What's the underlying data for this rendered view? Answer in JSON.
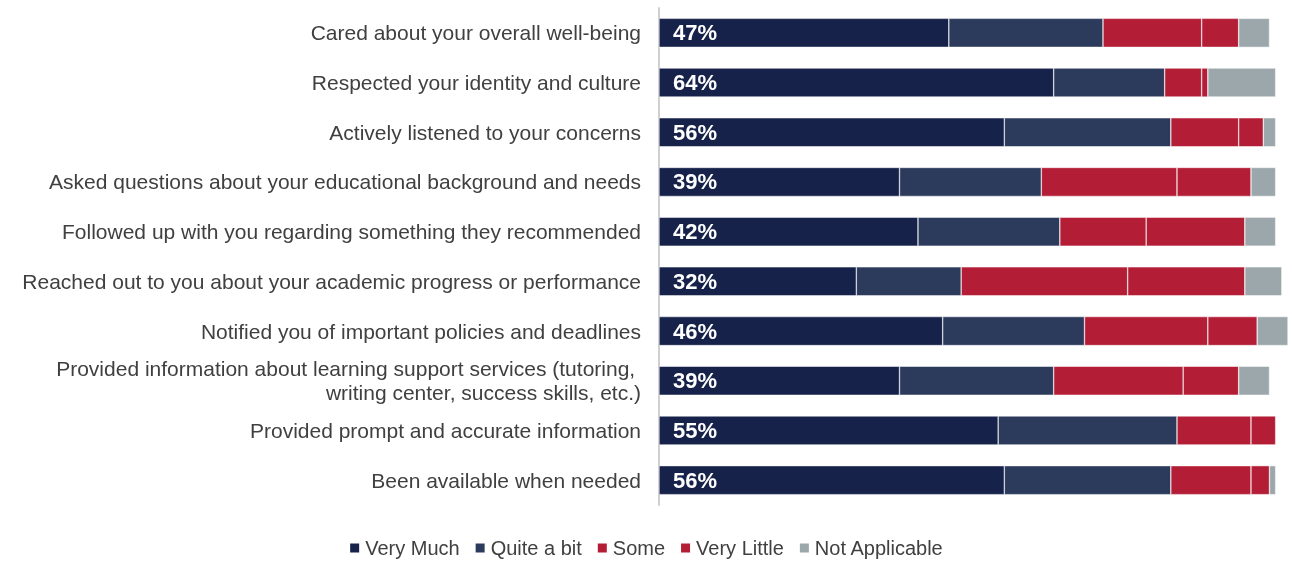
{
  "chart_data": {
    "type": "bar",
    "orientation": "horizontal",
    "stacked": true,
    "legend": "bottom",
    "xlim": [
      0,
      102
    ],
    "tick_labels": "y",
    "categories": [
      "Cared about your overall well-being",
      "Respected your identity and culture",
      "Actively listened to your concerns",
      "Asked questions about your educational background and needs",
      "Followed up with you regarding something they recommended",
      "Reached out to you about your academic progress or performance",
      "Notified you of important policies and deadlines",
      "Provided information about learning support services (tutoring, writing center, success skills, etc.)",
      "Provided prompt and accurate information",
      "Been available when needed"
    ],
    "series": [
      {
        "name": "Very Much",
        "color": "#16224a",
        "values": [
          47,
          64,
          56,
          39,
          42,
          32,
          46,
          39,
          55,
          56
        ],
        "value_labels": [
          "47%",
          "64%",
          "56%",
          "39%",
          "42%",
          "32%",
          "46%",
          "39%",
          "55%",
          "56%"
        ]
      },
      {
        "name": "Quite a bit",
        "color": "#2c3a5c",
        "values": [
          25,
          18,
          27,
          23,
          23,
          17,
          23,
          25,
          29,
          27
        ]
      },
      {
        "name": "Some",
        "color": "#b31e36",
        "values": [
          16,
          6,
          11,
          22,
          14,
          27,
          20,
          21,
          12,
          13
        ]
      },
      {
        "name": "Very Little",
        "color": "#b31e36",
        "values": [
          6,
          1,
          4,
          12,
          16,
          19,
          8,
          9,
          4,
          3
        ]
      },
      {
        "name": "Not Applicable",
        "color": "#9ba7aa",
        "values": [
          5,
          11,
          2,
          4,
          5,
          6,
          5,
          5,
          null,
          1
        ]
      }
    ]
  }
}
